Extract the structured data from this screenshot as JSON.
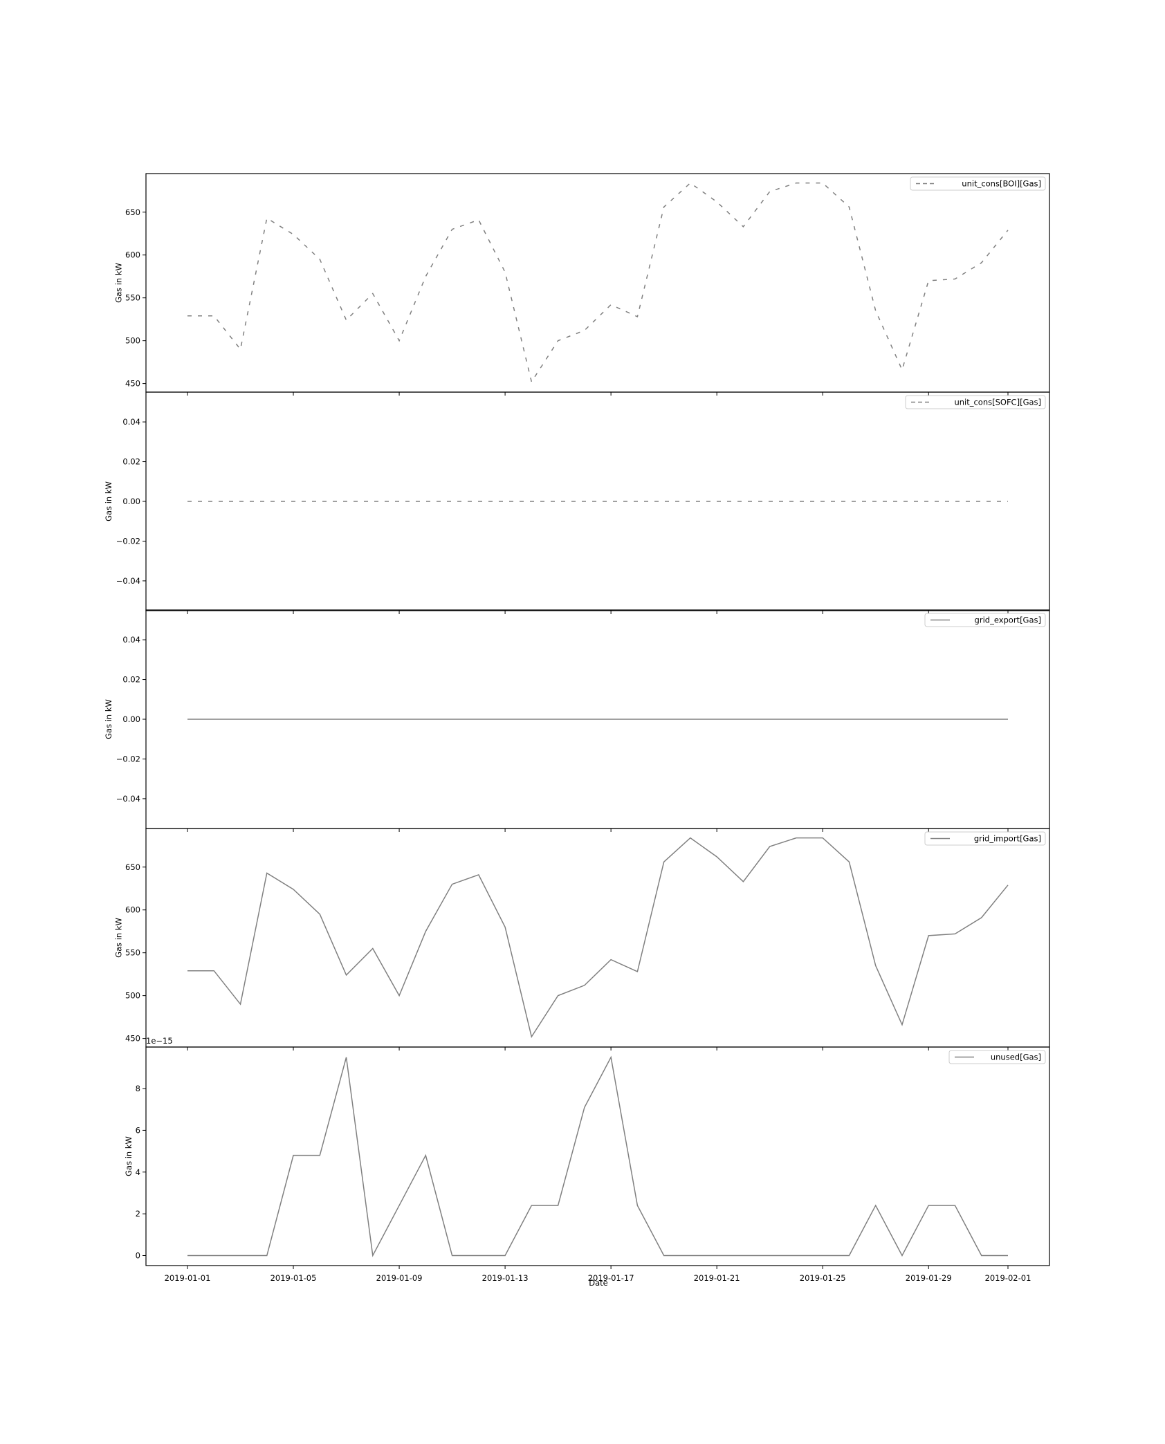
{
  "figure": {
    "xlabel": "Date",
    "x_ticks": [
      "2019-01-01",
      "2019-01-05",
      "2019-01-09",
      "2019-01-13",
      "2019-01-17",
      "2019-01-21",
      "2019-01-25",
      "2019-01-29",
      "2019-02-01"
    ],
    "line_color": "#808080",
    "background": "#ffffff"
  },
  "chart_data": [
    {
      "type": "line",
      "title": "",
      "ylabel": "Gas in kW",
      "xlabel": "",
      "ylim": [
        440,
        695
      ],
      "yticks": [
        450,
        500,
        550,
        600,
        650
      ],
      "ytick_labels": [
        "450",
        "500",
        "550",
        "600",
        "650"
      ],
      "grid": false,
      "legend_position": "top-right",
      "series": [
        {
          "name": "unit_cons[BOI][Gas]",
          "style": "dashed",
          "color": "#808080",
          "values": [
            529,
            529,
            490,
            643,
            624,
            595,
            524,
            555,
            500,
            575,
            630,
            641,
            580,
            452,
            500,
            512,
            542,
            528,
            656,
            684,
            662,
            633,
            674,
            684,
            684,
            656,
            535,
            466,
            570,
            572,
            591,
            629
          ]
        }
      ]
    },
    {
      "type": "line",
      "title": "",
      "ylabel": "Gas in kW",
      "xlabel": "",
      "ylim": [
        -0.055,
        0.055
      ],
      "yticks": [
        -0.04,
        -0.02,
        0.0,
        0.02,
        0.04
      ],
      "ytick_labels": [
        "−0.04",
        "−0.02",
        "0.00",
        "0.02",
        "0.04"
      ],
      "grid": false,
      "legend_position": "top-right",
      "series": [
        {
          "name": "unit_cons[SOFC][Gas]",
          "style": "dashed",
          "color": "#808080",
          "values": [
            0,
            0,
            0,
            0,
            0,
            0,
            0,
            0,
            0,
            0,
            0,
            0,
            0,
            0,
            0,
            0,
            0,
            0,
            0,
            0,
            0,
            0,
            0,
            0,
            0,
            0,
            0,
            0,
            0,
            0,
            0,
            0
          ]
        }
      ]
    },
    {
      "type": "line",
      "title": "",
      "ylabel": "Gas in kW",
      "xlabel": "",
      "ylim": [
        -0.055,
        0.055
      ],
      "yticks": [
        -0.04,
        -0.02,
        0.0,
        0.02,
        0.04
      ],
      "ytick_labels": [
        "−0.04",
        "−0.02",
        "0.00",
        "0.02",
        "0.04"
      ],
      "grid": false,
      "legend_position": "top-right",
      "series": [
        {
          "name": "grid_export[Gas]",
          "style": "solid",
          "color": "#808080",
          "values": [
            0,
            0,
            0,
            0,
            0,
            0,
            0,
            0,
            0,
            0,
            0,
            0,
            0,
            0,
            0,
            0,
            0,
            0,
            0,
            0,
            0,
            0,
            0,
            0,
            0,
            0,
            0,
            0,
            0,
            0,
            0,
            0
          ]
        }
      ]
    },
    {
      "type": "line",
      "title": "",
      "ylabel": "Gas in kW",
      "xlabel": "",
      "ylim": [
        440,
        695
      ],
      "yticks": [
        450,
        500,
        550,
        600,
        650
      ],
      "ytick_labels": [
        "450",
        "500",
        "550",
        "600",
        "650"
      ],
      "grid": false,
      "legend_position": "top-right",
      "series": [
        {
          "name": "grid_import[Gas]",
          "style": "solid",
          "color": "#808080",
          "values": [
            529,
            529,
            490,
            643,
            624,
            595,
            524,
            555,
            500,
            575,
            630,
            641,
            580,
            452,
            500,
            512,
            542,
            528,
            656,
            684,
            662,
            633,
            674,
            684,
            684,
            656,
            535,
            466,
            570,
            572,
            591,
            629
          ]
        }
      ]
    },
    {
      "type": "line",
      "title": "",
      "ylabel": "Gas in kW",
      "xlabel": "Date",
      "ylim": [
        -0.48,
        9.99
      ],
      "yticks": [
        0,
        2,
        4,
        6,
        8
      ],
      "ytick_labels": [
        "0",
        "2",
        "4",
        "6",
        "8"
      ],
      "y_offset_label": "1e−15",
      "grid": false,
      "legend_position": "top-right",
      "series": [
        {
          "name": "unused[Gas]",
          "style": "solid",
          "color": "#808080",
          "values": [
            0,
            0,
            0,
            0,
            4.8,
            4.8,
            9.5,
            0,
            2.4,
            4.8,
            0,
            0,
            0,
            2.4,
            2.4,
            7.1,
            9.5,
            2.4,
            0,
            0,
            0,
            0,
            0,
            0,
            0,
            0,
            2.4,
            0,
            2.4,
            2.4,
            0,
            0
          ]
        }
      ]
    }
  ]
}
